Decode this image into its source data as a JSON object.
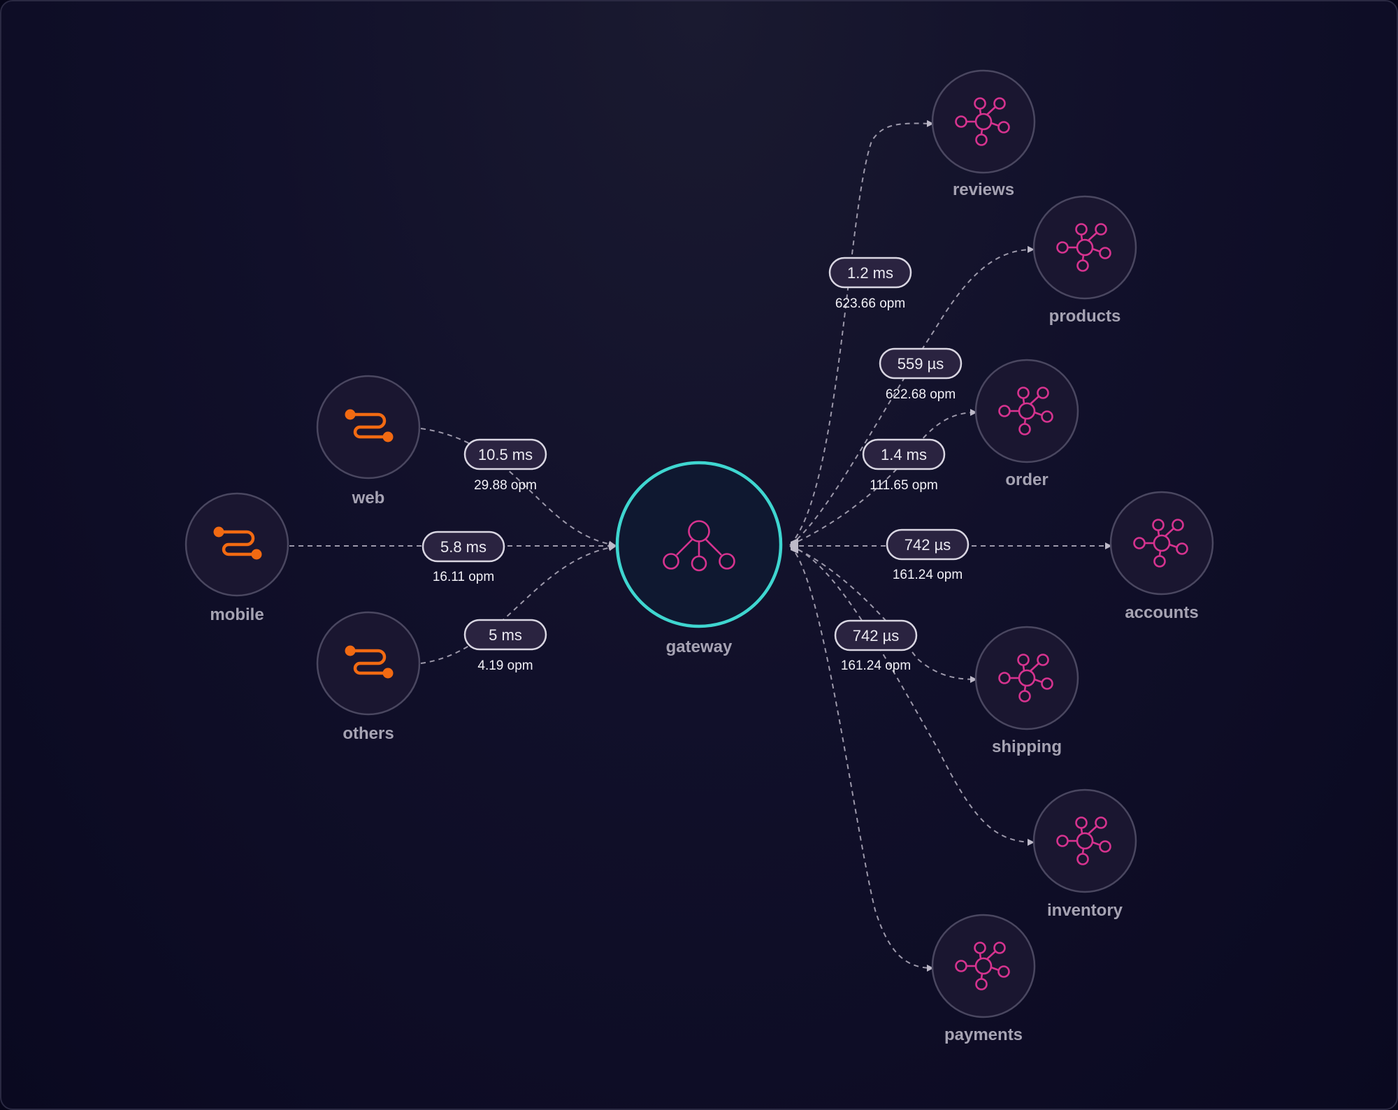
{
  "colors": {
    "background": "#0e0d24",
    "node_fill": "#1a1630",
    "node_ring": "#4a4760",
    "gateway_ring": "#3fd6d0",
    "client_icon": "#f26a12",
    "service_icon": "#d6338f",
    "edge": "#9c98aa",
    "pill_fill": "#2a2340",
    "pill_border": "#d9d6e2"
  },
  "nodes": {
    "gateway": {
      "label": "gateway",
      "icon": "gateway-hierarchy-icon"
    },
    "web": {
      "label": "web",
      "icon": "route-icon"
    },
    "mobile": {
      "label": "mobile",
      "icon": "route-icon"
    },
    "others": {
      "label": "others",
      "icon": "route-icon"
    },
    "reviews": {
      "label": "reviews",
      "icon": "service-hub-icon"
    },
    "products": {
      "label": "products",
      "icon": "service-hub-icon"
    },
    "order": {
      "label": "order",
      "icon": "service-hub-icon"
    },
    "accounts": {
      "label": "accounts",
      "icon": "service-hub-icon"
    },
    "shipping": {
      "label": "shipping",
      "icon": "service-hub-icon"
    },
    "inventory": {
      "label": "inventory",
      "icon": "service-hub-icon"
    },
    "payments": {
      "label": "payments",
      "icon": "service-hub-icon"
    }
  },
  "edges": {
    "web_gateway": {
      "latency": "10.5 ms",
      "rate": "29.88 opm"
    },
    "mobile_gateway": {
      "latency": "5.8 ms",
      "rate": "16.11 opm"
    },
    "others_gateway": {
      "latency": "5 ms",
      "rate": "4.19 opm"
    },
    "gateway_reviews": {
      "latency": "1.2 ms",
      "rate": "623.66 opm"
    },
    "gateway_products": {
      "latency": "559 µs",
      "rate": "622.68 opm"
    },
    "gateway_order": {
      "latency": "1.4 ms",
      "rate": "111.65 opm"
    },
    "gateway_accounts": {
      "latency": "742 µs",
      "rate": "161.24 opm"
    },
    "gateway_shipping": {
      "latency": "742 µs",
      "rate": "161.24 opm"
    }
  }
}
